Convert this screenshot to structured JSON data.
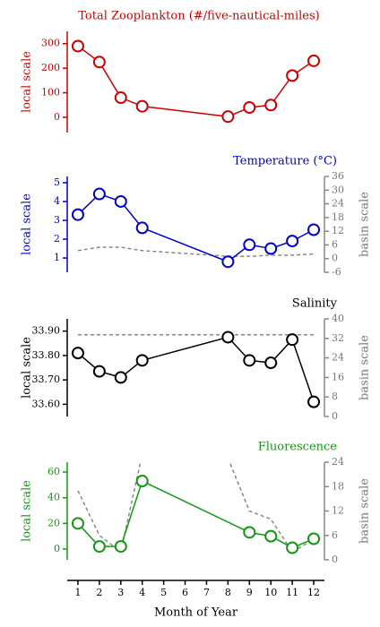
{
  "chart_data": [
    {
      "type": "line",
      "title": "Total Zooplankton (#/five-nautical-miles)",
      "title_color": "#cc0000",
      "ylabel": "local scale",
      "xlim": [
        0.5,
        12.5
      ],
      "ylim": [
        -62,
        350
      ],
      "yticks": [
        0,
        100,
        200,
        300
      ],
      "series": [
        {
          "color": "#cc0000",
          "x": [
            1,
            2,
            3,
            4,
            8,
            9,
            10,
            11,
            12
          ],
          "values": [
            290,
            225,
            80,
            45,
            3,
            40,
            50,
            170,
            230
          ]
        }
      ]
    },
    {
      "type": "line",
      "title": "Temperature (°C)",
      "title_color": "#0000cc",
      "ylabel": "local scale",
      "y2label": "basin scale",
      "xlim": [
        0.5,
        12.5
      ],
      "ylim": [
        0.24,
        5.33
      ],
      "yticks": [
        1,
        2,
        3,
        4,
        5
      ],
      "y2lim": [
        -6,
        36
      ],
      "y2ticks": [
        -6,
        0,
        6,
        12,
        18,
        24,
        30,
        36
      ],
      "series": [
        {
          "color": "#0000cc",
          "x": [
            1,
            2,
            3,
            4,
            8,
            9,
            10,
            11,
            12
          ],
          "values": [
            3.3,
            4.4,
            4.0,
            2.6,
            0.8,
            1.7,
            1.5,
            1.9,
            2.5
          ]
        },
        {
          "color": "#888888",
          "axis": "y2",
          "dashed": true,
          "x": [
            1,
            2,
            3,
            4,
            8,
            9,
            10,
            11,
            12
          ],
          "values": [
            3.5,
            5,
            5,
            3.5,
            1,
            1,
            1.5,
            1.5,
            2
          ]
        }
      ]
    },
    {
      "type": "line",
      "title": "Salinity",
      "title_color": "#000000",
      "ylabel": "local scale",
      "y2label": "basin scale",
      "xlim": [
        0.5,
        12.5
      ],
      "ylim": [
        33.55,
        33.95
      ],
      "yticks": [
        {
          "value": 33.6,
          "label": "33.60"
        },
        {
          "value": 33.7,
          "label": "33.70"
        },
        {
          "value": 33.8,
          "label": "33.80"
        },
        {
          "value": 33.9,
          "label": "33.90"
        }
      ],
      "y2lim": [
        0,
        40
      ],
      "y2ticks": [
        0,
        8,
        16,
        24,
        32,
        40
      ],
      "series": [
        {
          "color": "#000000",
          "x": [
            1,
            2,
            3,
            4,
            8,
            9,
            10,
            11,
            12
          ],
          "values": [
            33.81,
            33.735,
            33.71,
            33.78,
            33.875,
            33.78,
            33.77,
            33.865,
            33.61
          ]
        },
        {
          "color": "#888888",
          "axis": "y2",
          "dashed": true,
          "x": [
            1,
            2,
            3,
            4,
            8,
            9,
            10,
            11,
            12
          ],
          "values": [
            33.5,
            33.5,
            33.5,
            33.5,
            33.5,
            33.5,
            33.5,
            33.5,
            33.5
          ]
        }
      ]
    },
    {
      "type": "line",
      "title": "Fluorescence",
      "title_color": "#119911",
      "ylabel": "local scale",
      "y2label": "basin scale",
      "xlim": [
        0.5,
        12.5
      ],
      "ylim": [
        -8.4,
        67.7
      ],
      "yticks": [
        0,
        20,
        40,
        60
      ],
      "y2lim": [
        0,
        24
      ],
      "y2ticks": [
        0,
        6,
        12,
        18,
        24
      ],
      "xlabel": "Month of Year",
      "xticks": [
        1,
        2,
        3,
        4,
        5,
        6,
        7,
        8,
        9,
        10,
        11,
        12
      ],
      "series": [
        {
          "color": "#119911",
          "x": [
            1,
            2,
            3,
            4,
            9,
            10,
            11,
            12
          ],
          "values": [
            20,
            2,
            2,
            53,
            13,
            10,
            1,
            8
          ]
        },
        {
          "color": "#888888",
          "axis": "y2",
          "dashed": true,
          "x": [
            1,
            2,
            3,
            4,
            5,
            8,
            9,
            10,
            11,
            12
          ],
          "values": [
            17,
            6,
            2,
            26,
            null,
            25,
            12,
            10,
            2,
            5
          ]
        }
      ]
    }
  ]
}
